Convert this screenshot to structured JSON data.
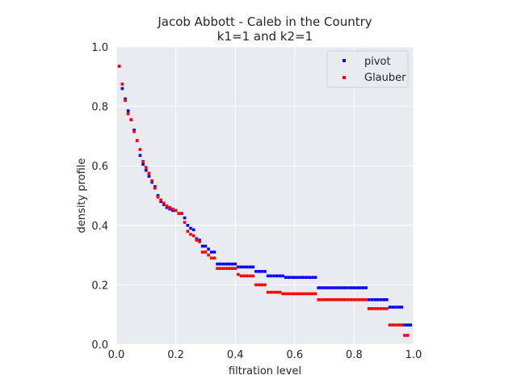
{
  "chart_data": {
    "type": "scatter",
    "title": "Jacob Abbott - Caleb in the Country",
    "subtitle": "k1=1 and k2=1",
    "xlabel": "filtration level",
    "ylabel": "density profile",
    "xlim": [
      0.0,
      1.0
    ],
    "ylim": [
      0.0,
      1.0
    ],
    "xticks": [
      "0.0",
      "0.2",
      "0.4",
      "0.6",
      "0.8",
      "1.0"
    ],
    "yticks": [
      "0.0",
      "0.2",
      "0.4",
      "0.6",
      "0.8",
      "1.0"
    ],
    "grid": true,
    "legend_position": "top-right",
    "background": "#eaeaf2",
    "series": [
      {
        "name": "pivot",
        "color": "#0000ff",
        "points": [
          [
            0.01,
            0.935
          ],
          [
            0.02,
            0.86
          ],
          [
            0.03,
            0.825
          ],
          [
            0.04,
            0.785
          ],
          [
            0.05,
            0.755
          ],
          [
            0.06,
            0.72
          ],
          [
            0.07,
            0.685
          ],
          [
            0.08,
            0.635
          ],
          [
            0.09,
            0.605
          ],
          [
            0.1,
            0.585
          ],
          [
            0.11,
            0.565
          ],
          [
            0.12,
            0.545
          ],
          [
            0.13,
            0.53
          ],
          [
            0.14,
            0.5
          ],
          [
            0.15,
            0.48
          ],
          [
            0.16,
            0.47
          ],
          [
            0.17,
            0.46
          ],
          [
            0.18,
            0.455
          ],
          [
            0.19,
            0.45
          ],
          [
            0.2,
            0.45
          ],
          [
            0.21,
            0.44
          ],
          [
            0.22,
            0.44
          ],
          [
            0.23,
            0.425
          ],
          [
            0.24,
            0.4
          ],
          [
            0.25,
            0.39
          ],
          [
            0.26,
            0.385
          ],
          [
            0.27,
            0.355
          ],
          [
            0.28,
            0.35
          ],
          [
            0.29,
            0.33
          ],
          [
            0.3,
            0.33
          ],
          [
            0.31,
            0.32
          ],
          [
            0.32,
            0.31
          ],
          [
            0.33,
            0.31
          ],
          [
            0.34,
            0.27
          ],
          [
            0.35,
            0.27
          ],
          [
            0.36,
            0.27
          ],
          [
            0.37,
            0.27
          ],
          [
            0.38,
            0.27
          ],
          [
            0.39,
            0.27
          ],
          [
            0.4,
            0.27
          ],
          [
            0.41,
            0.26
          ],
          [
            0.42,
            0.26
          ],
          [
            0.43,
            0.26
          ],
          [
            0.44,
            0.26
          ],
          [
            0.45,
            0.26
          ],
          [
            0.46,
            0.26
          ],
          [
            0.47,
            0.245
          ],
          [
            0.48,
            0.245
          ],
          [
            0.49,
            0.245
          ],
          [
            0.5,
            0.245
          ],
          [
            0.51,
            0.23
          ],
          [
            0.52,
            0.23
          ],
          [
            0.53,
            0.23
          ],
          [
            0.54,
            0.23
          ],
          [
            0.55,
            0.23
          ],
          [
            0.56,
            0.23
          ],
          [
            0.57,
            0.225
          ],
          [
            0.58,
            0.225
          ],
          [
            0.59,
            0.225
          ],
          [
            0.6,
            0.225
          ],
          [
            0.61,
            0.225
          ],
          [
            0.62,
            0.225
          ],
          [
            0.63,
            0.225
          ],
          [
            0.64,
            0.225
          ],
          [
            0.65,
            0.225
          ],
          [
            0.66,
            0.225
          ],
          [
            0.67,
            0.225
          ],
          [
            0.68,
            0.19
          ],
          [
            0.69,
            0.19
          ],
          [
            0.7,
            0.19
          ],
          [
            0.71,
            0.19
          ],
          [
            0.72,
            0.19
          ],
          [
            0.73,
            0.19
          ],
          [
            0.74,
            0.19
          ],
          [
            0.75,
            0.19
          ],
          [
            0.76,
            0.19
          ],
          [
            0.77,
            0.19
          ],
          [
            0.78,
            0.19
          ],
          [
            0.79,
            0.19
          ],
          [
            0.8,
            0.19
          ],
          [
            0.81,
            0.19
          ],
          [
            0.82,
            0.19
          ],
          [
            0.83,
            0.19
          ],
          [
            0.84,
            0.19
          ],
          [
            0.85,
            0.15
          ],
          [
            0.86,
            0.15
          ],
          [
            0.87,
            0.15
          ],
          [
            0.88,
            0.15
          ],
          [
            0.89,
            0.15
          ],
          [
            0.9,
            0.15
          ],
          [
            0.91,
            0.15
          ],
          [
            0.92,
            0.125
          ],
          [
            0.93,
            0.125
          ],
          [
            0.94,
            0.125
          ],
          [
            0.95,
            0.125
          ],
          [
            0.96,
            0.125
          ],
          [
            0.97,
            0.065
          ],
          [
            0.98,
            0.065
          ],
          [
            0.99,
            0.065
          ]
        ]
      },
      {
        "name": "Glauber",
        "color": "#ff0000",
        "points": [
          [
            0.01,
            0.935
          ],
          [
            0.02,
            0.875
          ],
          [
            0.03,
            0.82
          ],
          [
            0.04,
            0.775
          ],
          [
            0.05,
            0.755
          ],
          [
            0.06,
            0.715
          ],
          [
            0.07,
            0.685
          ],
          [
            0.08,
            0.655
          ],
          [
            0.09,
            0.615
          ],
          [
            0.1,
            0.595
          ],
          [
            0.11,
            0.575
          ],
          [
            0.12,
            0.55
          ],
          [
            0.13,
            0.525
          ],
          [
            0.14,
            0.495
          ],
          [
            0.15,
            0.485
          ],
          [
            0.16,
            0.475
          ],
          [
            0.17,
            0.465
          ],
          [
            0.18,
            0.46
          ],
          [
            0.19,
            0.455
          ],
          [
            0.2,
            0.45
          ],
          [
            0.21,
            0.44
          ],
          [
            0.22,
            0.44
          ],
          [
            0.23,
            0.41
          ],
          [
            0.24,
            0.38
          ],
          [
            0.25,
            0.37
          ],
          [
            0.26,
            0.365
          ],
          [
            0.27,
            0.35
          ],
          [
            0.28,
            0.345
          ],
          [
            0.29,
            0.31
          ],
          [
            0.3,
            0.31
          ],
          [
            0.31,
            0.3
          ],
          [
            0.32,
            0.29
          ],
          [
            0.33,
            0.29
          ],
          [
            0.34,
            0.255
          ],
          [
            0.35,
            0.255
          ],
          [
            0.36,
            0.255
          ],
          [
            0.37,
            0.255
          ],
          [
            0.38,
            0.255
          ],
          [
            0.39,
            0.255
          ],
          [
            0.4,
            0.255
          ],
          [
            0.41,
            0.235
          ],
          [
            0.42,
            0.23
          ],
          [
            0.43,
            0.23
          ],
          [
            0.44,
            0.23
          ],
          [
            0.45,
            0.23
          ],
          [
            0.46,
            0.23
          ],
          [
            0.47,
            0.2
          ],
          [
            0.48,
            0.2
          ],
          [
            0.49,
            0.2
          ],
          [
            0.5,
            0.2
          ],
          [
            0.51,
            0.175
          ],
          [
            0.52,
            0.175
          ],
          [
            0.53,
            0.175
          ],
          [
            0.54,
            0.175
          ],
          [
            0.55,
            0.175
          ],
          [
            0.56,
            0.17
          ],
          [
            0.57,
            0.17
          ],
          [
            0.58,
            0.17
          ],
          [
            0.59,
            0.17
          ],
          [
            0.6,
            0.17
          ],
          [
            0.61,
            0.17
          ],
          [
            0.62,
            0.17
          ],
          [
            0.63,
            0.17
          ],
          [
            0.64,
            0.17
          ],
          [
            0.65,
            0.17
          ],
          [
            0.66,
            0.17
          ],
          [
            0.67,
            0.17
          ],
          [
            0.68,
            0.15
          ],
          [
            0.69,
            0.15
          ],
          [
            0.7,
            0.15
          ],
          [
            0.71,
            0.15
          ],
          [
            0.72,
            0.15
          ],
          [
            0.73,
            0.15
          ],
          [
            0.74,
            0.15
          ],
          [
            0.75,
            0.15
          ],
          [
            0.76,
            0.15
          ],
          [
            0.77,
            0.15
          ],
          [
            0.78,
            0.15
          ],
          [
            0.79,
            0.15
          ],
          [
            0.8,
            0.15
          ],
          [
            0.81,
            0.15
          ],
          [
            0.82,
            0.15
          ],
          [
            0.83,
            0.15
          ],
          [
            0.84,
            0.15
          ],
          [
            0.85,
            0.12
          ],
          [
            0.86,
            0.12
          ],
          [
            0.87,
            0.12
          ],
          [
            0.88,
            0.12
          ],
          [
            0.89,
            0.12
          ],
          [
            0.9,
            0.12
          ],
          [
            0.91,
            0.12
          ],
          [
            0.92,
            0.065
          ],
          [
            0.93,
            0.065
          ],
          [
            0.94,
            0.065
          ],
          [
            0.95,
            0.065
          ],
          [
            0.96,
            0.065
          ],
          [
            0.97,
            0.03
          ],
          [
            0.98,
            0.03
          ]
        ]
      }
    ]
  }
}
